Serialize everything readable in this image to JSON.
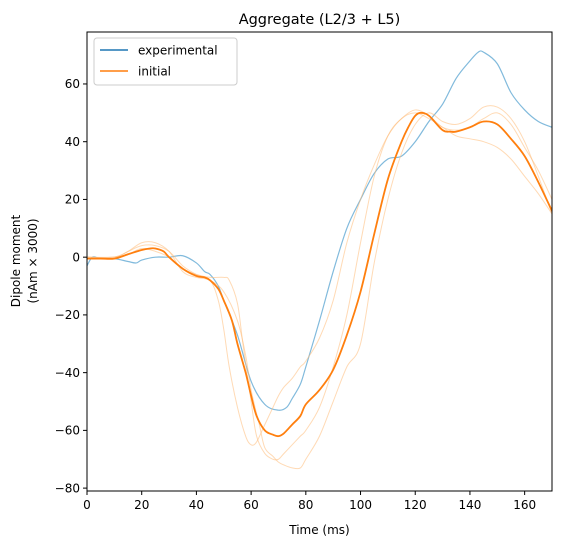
{
  "chart_data": {
    "type": "line",
    "title": "Aggregate (L2/3 + L5)",
    "xlabel": "Time (ms)",
    "ylabel_line1": "Dipole moment",
    "ylabel_line2": "(nAm × 3000)",
    "xlim": [
      0,
      170
    ],
    "ylim": [
      -81,
      78
    ],
    "xticks": [
      0,
      20,
      40,
      60,
      80,
      100,
      120,
      140,
      160
    ],
    "yticks": [
      -80,
      -60,
      -40,
      -20,
      0,
      20,
      40,
      60
    ],
    "grid": false,
    "legend_position": "top-left",
    "legend": [
      {
        "label": "experimental",
        "color": "#1f77b4"
      },
      {
        "label": "initial",
        "color": "#ff7f0e"
      }
    ],
    "series": [
      {
        "name": "experimental",
        "color": "#6baed6",
        "opacity": 0.85,
        "width": 1.2,
        "x": [
          0,
          2,
          5,
          10,
          15,
          18,
          20,
          25,
          30,
          35,
          40,
          43,
          45,
          48,
          50,
          55,
          60,
          65,
          70,
          73,
          75,
          78,
          80,
          85,
          90,
          95,
          100,
          105,
          110,
          115,
          120,
          125,
          130,
          135,
          140,
          143,
          145,
          150,
          155,
          160,
          165,
          170
        ],
        "y": [
          -3,
          0,
          -0.5,
          -0.5,
          -1.5,
          -2,
          -1,
          0,
          0,
          0.5,
          -2,
          -5,
          -6,
          -10,
          -15,
          -27,
          -43,
          -51,
          -53,
          -52,
          -49,
          -44,
          -38,
          -22,
          -5,
          10,
          20,
          29,
          34,
          35,
          40,
          47,
          53,
          62,
          68,
          71,
          71,
          67,
          57,
          51,
          47,
          45
        ]
      },
      {
        "name": "",
        "color": "#ffbb78",
        "opacity": 0.55,
        "width": 1,
        "x": [
          0,
          10,
          15,
          20,
          25,
          30,
          35,
          40,
          45,
          48,
          50,
          52,
          55,
          58,
          60,
          62,
          65,
          68,
          70,
          72,
          75,
          78,
          80,
          85,
          90,
          95,
          100,
          105,
          110,
          115,
          120,
          125,
          130,
          135,
          140,
          145,
          150,
          155,
          160,
          165,
          170
        ],
        "y": [
          0,
          0,
          2,
          4,
          4,
          2,
          -3,
          -6,
          -8,
          -15,
          -25,
          -38,
          -52,
          -62,
          -65,
          -64,
          -58,
          -52,
          -48,
          -45,
          -42,
          -38,
          -36,
          -28,
          -15,
          5,
          20,
          32,
          42,
          48,
          50,
          48,
          45,
          42,
          41,
          40,
          38,
          34,
          28,
          22,
          15
        ]
      },
      {
        "name": "",
        "color": "#ffbb78",
        "opacity": 0.55,
        "width": 1,
        "x": [
          0,
          10,
          15,
          20,
          25,
          30,
          35,
          40,
          45,
          50,
          52,
          55,
          57,
          60,
          62,
          65,
          68,
          70,
          72,
          75,
          78,
          80,
          85,
          90,
          95,
          100,
          105,
          110,
          115,
          120,
          125,
          130,
          135,
          140,
          145,
          150,
          155,
          160,
          165,
          170
        ],
        "y": [
          0,
          0,
          1,
          3,
          2,
          0,
          -4,
          -6,
          -7,
          -7,
          -8,
          -16,
          -30,
          -50,
          -62,
          -68,
          -70,
          -70,
          -68,
          -65,
          -62,
          -60,
          -52,
          -38,
          -20,
          5,
          28,
          42,
          48,
          51,
          49,
          45,
          44,
          45,
          48,
          50,
          46,
          38,
          30,
          20
        ]
      },
      {
        "name": "",
        "color": "#ffbb78",
        "opacity": 0.55,
        "width": 1,
        "x": [
          0,
          10,
          15,
          20,
          25,
          30,
          35,
          40,
          45,
          50,
          55,
          58,
          60,
          63,
          65,
          68,
          70,
          72,
          75,
          78,
          80,
          85,
          90,
          95,
          100,
          105,
          110,
          115,
          120,
          125,
          130,
          135,
          140,
          145,
          150,
          155,
          160,
          165,
          170
        ],
        "y": [
          0,
          0,
          2,
          5,
          5,
          2,
          -5,
          -7,
          -8,
          -12,
          -22,
          -34,
          -46,
          -58,
          -66,
          -69,
          -71,
          -72,
          -73,
          -73,
          -70,
          -62,
          -50,
          -38,
          -30,
          -2,
          20,
          36,
          46,
          50,
          47,
          46,
          48,
          52,
          52,
          48,
          40,
          28,
          15
        ]
      },
      {
        "name": "initial",
        "color": "#ff7f0e",
        "opacity": 1,
        "width": 1.8,
        "x": [
          0,
          5,
          10,
          15,
          20,
          23,
          25,
          28,
          30,
          35,
          40,
          43,
          45,
          48,
          50,
          53,
          55,
          58,
          60,
          62,
          65,
          68,
          70,
          72,
          75,
          78,
          80,
          85,
          90,
          95,
          100,
          105,
          110,
          115,
          118,
          120,
          122,
          125,
          130,
          133,
          135,
          140,
          145,
          150,
          155,
          160,
          165,
          170
        ],
        "y": [
          -0.5,
          -0.5,
          -0.5,
          1,
          2.5,
          3,
          3,
          2,
          0,
          -4,
          -6.5,
          -7,
          -8,
          -11,
          -15,
          -22,
          -30,
          -40,
          -48,
          -55,
          -60,
          -61.5,
          -62,
          -61,
          -58,
          -55,
          -51,
          -46,
          -39,
          -27,
          -12,
          8,
          27,
          40,
          46,
          49,
          50,
          49,
          44,
          43.5,
          43.5,
          45,
          47,
          46,
          41,
          35,
          26,
          16
        ]
      }
    ]
  }
}
